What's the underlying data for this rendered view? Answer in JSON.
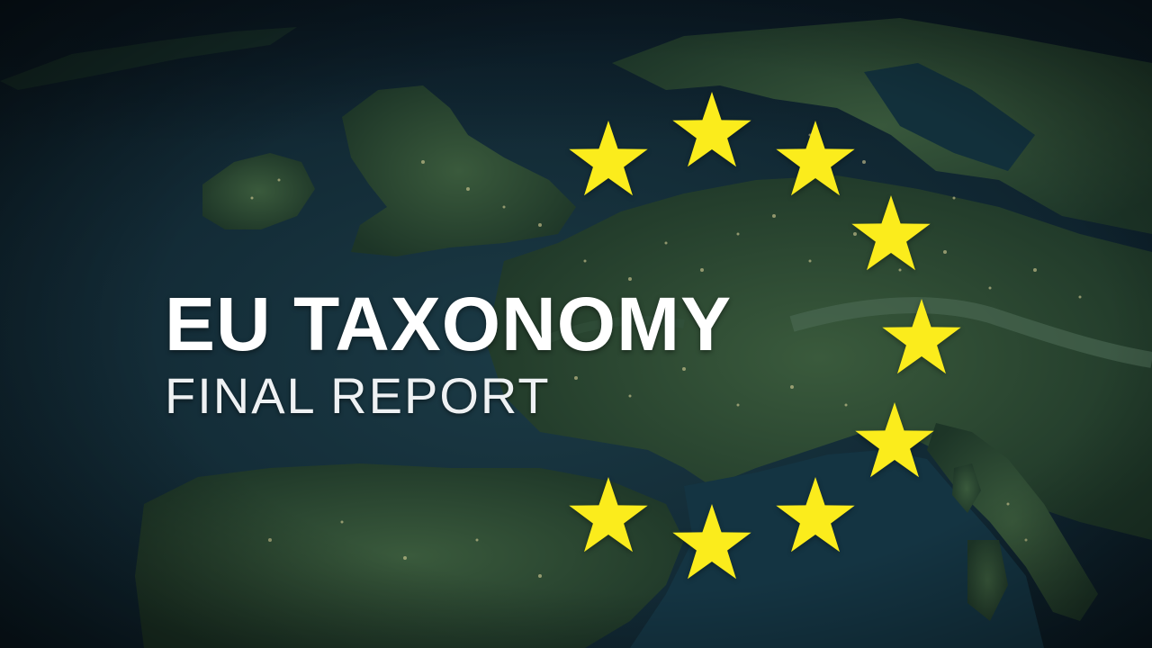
{
  "title": {
    "main": "EU TAXONOMY",
    "sub": "FINAL REPORT"
  },
  "colors": {
    "star": "#fbec1c",
    "ocean": "#0f2a36",
    "land": "#23402f",
    "title_text": "#ffffff"
  },
  "background": {
    "description_icon": "europe-night-map",
    "star_count": 9
  }
}
